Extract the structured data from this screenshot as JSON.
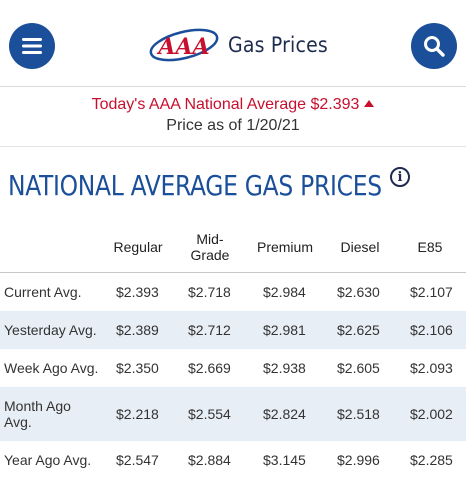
{
  "header": {
    "logo_text": "AAA",
    "title": "Gas Prices",
    "menu_icon": "hamburger-menu-icon",
    "search_icon": "search-icon",
    "brand_color": "#1b4f9a",
    "logo_red": "#c8102e"
  },
  "banner": {
    "national_average": "Today's AAA National Average $2.393",
    "trend_icon": "up-triangle-icon",
    "price_as_of": "Price as of 1/20/21",
    "accent_color": "#c8102e"
  },
  "section": {
    "title": "NATIONAL AVERAGE GAS PRICES",
    "info_icon": "info-icon"
  },
  "table": {
    "columns": [
      "Regular",
      "Mid-Grade",
      "Premium",
      "Diesel",
      "E85"
    ],
    "rows": [
      {
        "label": "Current Avg.",
        "values": [
          "$2.393",
          "$2.718",
          "$2.984",
          "$2.630",
          "$2.107"
        ]
      },
      {
        "label": "Yesterday Avg.",
        "values": [
          "$2.389",
          "$2.712",
          "$2.981",
          "$2.625",
          "$2.106"
        ]
      },
      {
        "label": "Week Ago Avg.",
        "values": [
          "$2.350",
          "$2.669",
          "$2.938",
          "$2.605",
          "$2.093"
        ]
      },
      {
        "label": "Month Ago Avg.",
        "values": [
          "$2.218",
          "$2.554",
          "$2.824",
          "$2.518",
          "$2.002"
        ]
      },
      {
        "label": "Year Ago Avg.",
        "values": [
          "$2.547",
          "$2.884",
          "$3.145",
          "$2.996",
          "$2.285"
        ]
      }
    ]
  }
}
